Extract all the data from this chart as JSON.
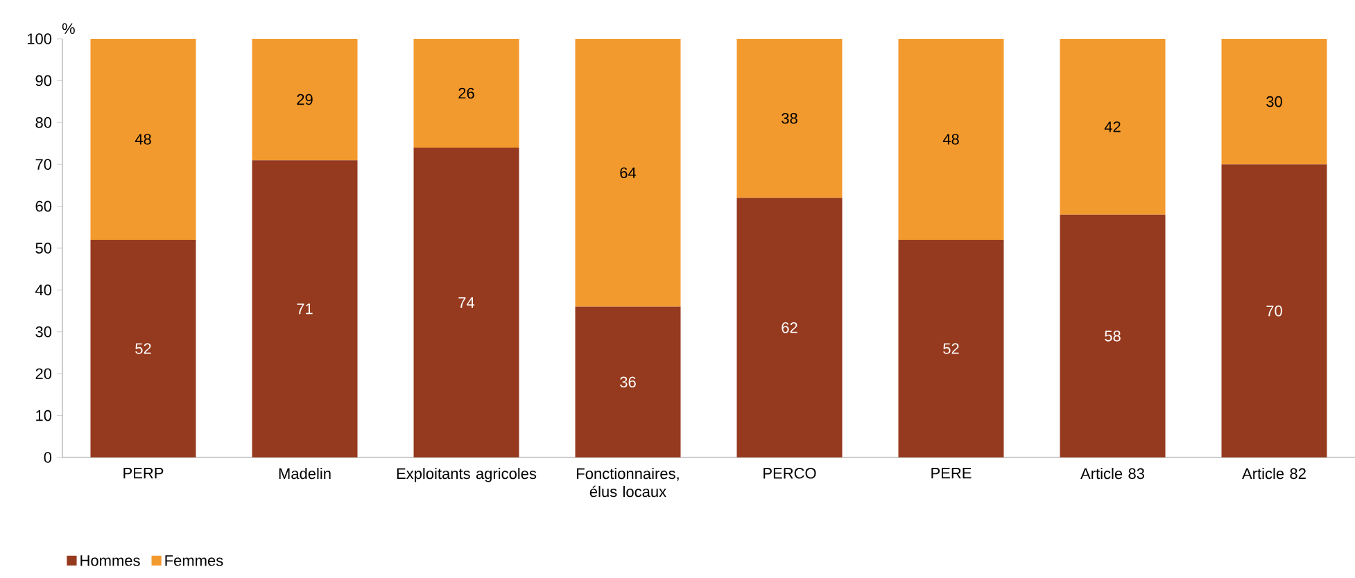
{
  "chart_data": {
    "type": "bar",
    "stacked": true,
    "ylabel": "%",
    "categories": [
      "PERP",
      "Madelin",
      "Exploitants agricoles",
      "Fonctionnaires, élus locaux",
      "PERCO",
      "PERE",
      "Article 83",
      "Article 82"
    ],
    "series": [
      {
        "name": "Hommes",
        "color": "#953a1e",
        "values": [
          52,
          71,
          74,
          36,
          62,
          52,
          58,
          70
        ]
      },
      {
        "name": "Femmes",
        "color": "#f39a2e",
        "values": [
          48,
          29,
          26,
          64,
          38,
          48,
          42,
          30
        ]
      }
    ],
    "ylim": [
      0,
      100
    ],
    "yticks": [
      0,
      10,
      20,
      30,
      40,
      50,
      60,
      70,
      80,
      90,
      100
    ],
    "data_labels": true,
    "legend": "bottom left",
    "grid": false
  }
}
